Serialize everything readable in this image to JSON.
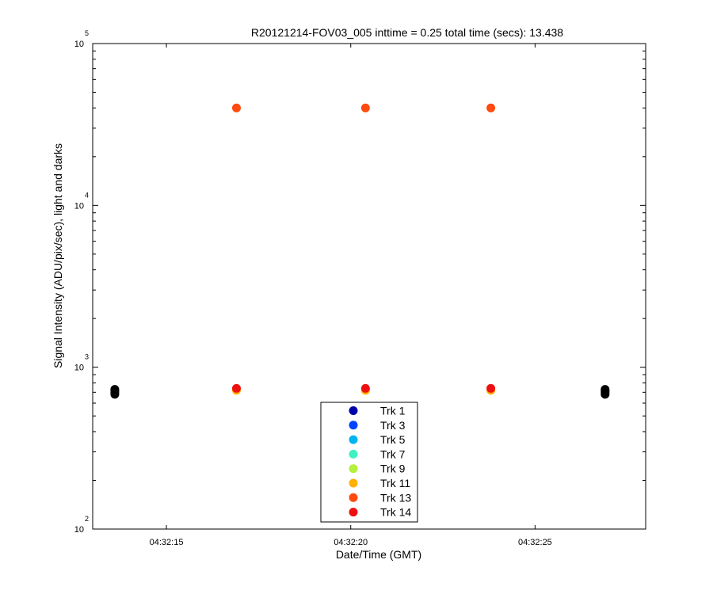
{
  "chart_data": {
    "type": "scatter",
    "title": "R20121214-FOV03_005 inttime = 0.25 total time (secs): 13.438",
    "xlabel": "Date/Time (GMT)",
    "ylabel": "Signal Intensity (ADU/pix/sec), light and darks",
    "yscale": "log",
    "ylim": [
      100,
      100000
    ],
    "xlim": [
      "04:32:13.0",
      "04:32:28.0"
    ],
    "x_ticks": [
      "04:32:15",
      "04:32:20",
      "04:32:25"
    ],
    "y_ticks": [
      {
        "base": "10",
        "exp": "2"
      },
      {
        "base": "10",
        "exp": "3"
      },
      {
        "base": "10",
        "exp": "4"
      },
      {
        "base": "10",
        "exp": "5"
      }
    ],
    "grid": false,
    "legend_position": "bottom-center",
    "series": [
      {
        "name": "Trk 1",
        "color": "#0000aa",
        "points": []
      },
      {
        "name": "Trk 3",
        "color": "#0044ff",
        "points": []
      },
      {
        "name": "Trk 5",
        "color": "#00b4f0",
        "points": []
      },
      {
        "name": "Trk 7",
        "color": "#40f0c0",
        "points": []
      },
      {
        "name": "Trk 9",
        "color": "#b4f040",
        "points": []
      },
      {
        "name": "Trk 11",
        "color": "#ffb000",
        "points": [
          {
            "x": "04:32:16.9",
            "y": 720
          },
          {
            "x": "04:32:20.4",
            "y": 720
          },
          {
            "x": "04:32:23.8",
            "y": 720
          }
        ]
      },
      {
        "name": "Trk 13",
        "color": "#ff4a10",
        "points": [
          {
            "x": "04:32:16.9",
            "y": 40000
          },
          {
            "x": "04:32:20.4",
            "y": 40000
          },
          {
            "x": "04:32:23.8",
            "y": 40000
          }
        ]
      },
      {
        "name": "Trk 14",
        "color": "#ee1010",
        "points": [
          {
            "x": "04:32:16.9",
            "y": 740
          },
          {
            "x": "04:32:20.4",
            "y": 740
          },
          {
            "x": "04:32:23.8",
            "y": 740
          }
        ]
      }
    ],
    "dark_points": {
      "color": "#000000",
      "points": [
        {
          "x": "04:32:13.6",
          "y": 680
        },
        {
          "x": "04:32:13.6",
          "y": 700
        },
        {
          "x": "04:32:13.6",
          "y": 715
        },
        {
          "x": "04:32:13.6",
          "y": 730
        },
        {
          "x": "04:32:26.9",
          "y": 680
        },
        {
          "x": "04:32:26.9",
          "y": 700
        },
        {
          "x": "04:32:26.9",
          "y": 715
        },
        {
          "x": "04:32:26.9",
          "y": 730
        }
      ]
    }
  }
}
